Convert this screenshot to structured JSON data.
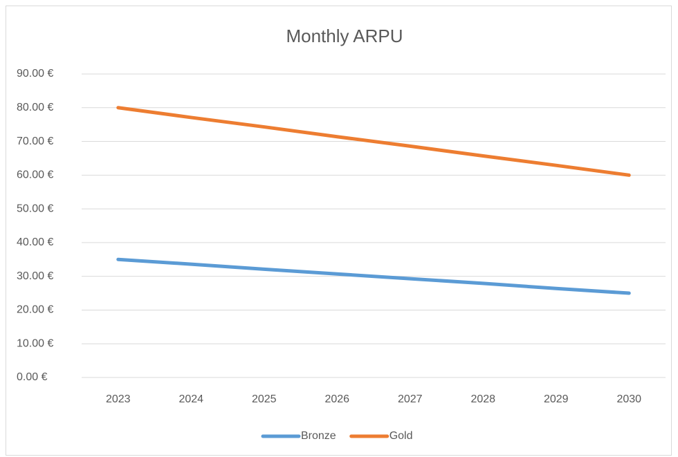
{
  "chart_data": {
    "type": "line",
    "title": "Monthly ARPU",
    "categories": [
      "2023",
      "2024",
      "2025",
      "2026",
      "2027",
      "2028",
      "2029",
      "2030"
    ],
    "series": [
      {
        "name": "Bronze",
        "color": "#5b9bd5",
        "values": [
          35,
          33.6,
          32.1,
          30.7,
          29.3,
          27.9,
          26.4,
          25
        ]
      },
      {
        "name": "Gold",
        "color": "#ed7d31",
        "values": [
          80,
          77.1,
          74.3,
          71.4,
          68.6,
          65.7,
          62.9,
          60
        ]
      }
    ],
    "ylim": [
      0,
      90
    ],
    "yticks": [
      {
        "value": 0,
        "label": "0.00 €"
      },
      {
        "value": 10,
        "label": "10.00 €"
      },
      {
        "value": 20,
        "label": "20.00 €"
      },
      {
        "value": 30,
        "label": "30.00 €"
      },
      {
        "value": 40,
        "label": "40.00 €"
      },
      {
        "value": 50,
        "label": "50.00 €"
      },
      {
        "value": 60,
        "label": "60.00 €"
      },
      {
        "value": 70,
        "label": "70.00 €"
      },
      {
        "value": 80,
        "label": "80.00 €"
      },
      {
        "value": 90,
        "label": "90.00 €"
      }
    ],
    "grid": true,
    "legend": "bottom"
  }
}
